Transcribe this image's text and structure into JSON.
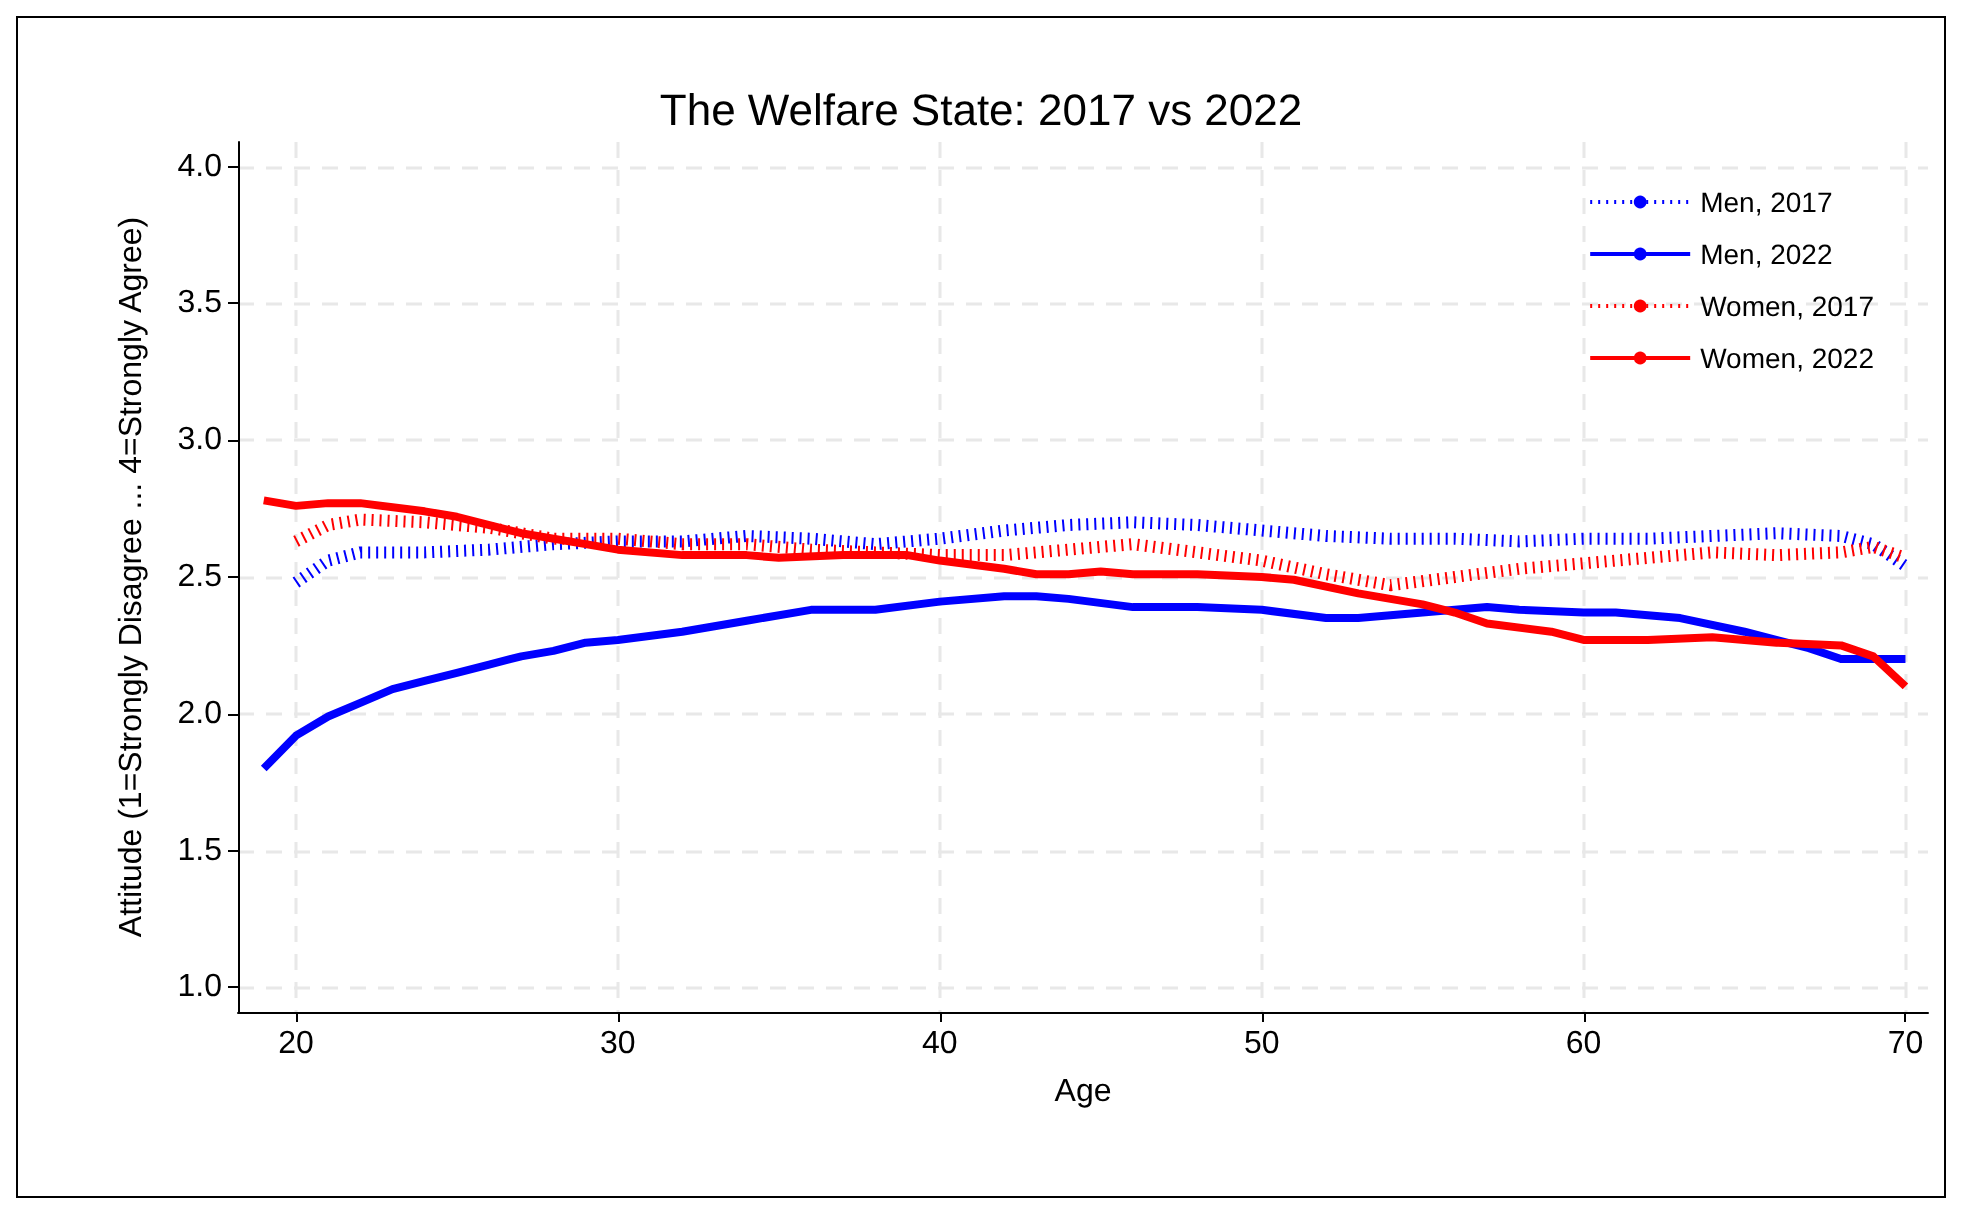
{
  "chart_data": {
    "type": "line",
    "title": "The Welfare State: 2017 vs 2022",
    "xlabel": "Age",
    "ylabel": "Attitude (1=Strongly Disagree ... 4=Strongly Agree)",
    "xlim": [
      18.2,
      70.7
    ],
    "xticks": [
      20,
      30,
      40,
      50,
      60,
      70
    ],
    "ylim": [
      0.91,
      4.09
    ],
    "yticks": [
      {
        "value": 1,
        "label": "1.0"
      },
      {
        "value": 1.5,
        "label": "1.5"
      },
      {
        "value": 2,
        "label": "2.0"
      },
      {
        "value": 2.5,
        "label": "2.5"
      },
      {
        "value": 3,
        "label": "3.0"
      },
      {
        "value": 3.5,
        "label": "3.5"
      },
      {
        "value": 4,
        "label": "4.0"
      }
    ],
    "grid": true,
    "legend": "top right",
    "marker": "none",
    "series": [
      {
        "name": "Men, 2017",
        "color": "#0000ff",
        "line_style": "dotted",
        "x": [
          20,
          21,
          22,
          24,
          26,
          28,
          30,
          32,
          34,
          36,
          38,
          40,
          42,
          44,
          46,
          48,
          50,
          52,
          54,
          56,
          58,
          60,
          62,
          64,
          66,
          68,
          69,
          70
        ],
        "values": [
          2.48,
          2.56,
          2.59,
          2.59,
          2.6,
          2.62,
          2.63,
          2.63,
          2.65,
          2.64,
          2.62,
          2.64,
          2.67,
          2.69,
          2.7,
          2.69,
          2.67,
          2.65,
          2.64,
          2.64,
          2.63,
          2.64,
          2.64,
          2.65,
          2.66,
          2.65,
          2.62,
          2.54
        ]
      },
      {
        "name": "Men, 2022",
        "color": "#0000ff",
        "line_style": "solid",
        "x": [
          19,
          20,
          21,
          22,
          23,
          24,
          25,
          26,
          27,
          28,
          29,
          30,
          32,
          33,
          34,
          36,
          38,
          40,
          42,
          43,
          44,
          46,
          48,
          50,
          52,
          53,
          55,
          57,
          58,
          60,
          61,
          63,
          65,
          67,
          68,
          70
        ],
        "values": [
          1.8,
          1.92,
          1.99,
          2.04,
          2.09,
          2.12,
          2.15,
          2.18,
          2.21,
          2.23,
          2.26,
          2.27,
          2.3,
          2.32,
          2.34,
          2.38,
          2.38,
          2.41,
          2.43,
          2.43,
          2.42,
          2.39,
          2.39,
          2.38,
          2.35,
          2.35,
          2.37,
          2.39,
          2.38,
          2.37,
          2.37,
          2.35,
          2.3,
          2.24,
          2.2,
          2.2
        ]
      },
      {
        "name": "Women, 2017",
        "color": "#ff0000",
        "line_style": "dotted",
        "x": [
          20,
          21,
          22,
          24,
          26,
          28,
          30,
          32,
          34,
          36,
          38,
          40,
          42,
          44,
          46,
          48,
          50,
          52,
          54,
          56,
          58,
          60,
          62,
          64,
          66,
          68,
          69,
          70
        ],
        "values": [
          2.63,
          2.69,
          2.71,
          2.7,
          2.68,
          2.64,
          2.64,
          2.62,
          2.62,
          2.6,
          2.59,
          2.58,
          2.58,
          2.6,
          2.62,
          2.59,
          2.56,
          2.51,
          2.47,
          2.5,
          2.53,
          2.55,
          2.57,
          2.59,
          2.58,
          2.59,
          2.61,
          2.57
        ]
      },
      {
        "name": "Women, 2022",
        "color": "#ff0000",
        "line_style": "solid",
        "x": [
          19,
          20,
          21,
          22,
          24,
          25,
          27,
          29,
          30,
          32,
          34,
          35,
          37,
          39,
          40,
          42,
          43,
          44,
          45,
          46,
          48,
          50,
          51,
          53,
          55,
          56,
          57,
          59,
          60,
          62,
          64,
          66,
          68,
          69,
          70
        ],
        "values": [
          2.78,
          2.76,
          2.77,
          2.77,
          2.74,
          2.72,
          2.66,
          2.62,
          2.6,
          2.58,
          2.58,
          2.57,
          2.58,
          2.58,
          2.56,
          2.53,
          2.51,
          2.51,
          2.52,
          2.51,
          2.51,
          2.5,
          2.49,
          2.44,
          2.4,
          2.37,
          2.33,
          2.3,
          2.27,
          2.27,
          2.28,
          2.26,
          2.25,
          2.21,
          2.1
        ]
      }
    ]
  }
}
